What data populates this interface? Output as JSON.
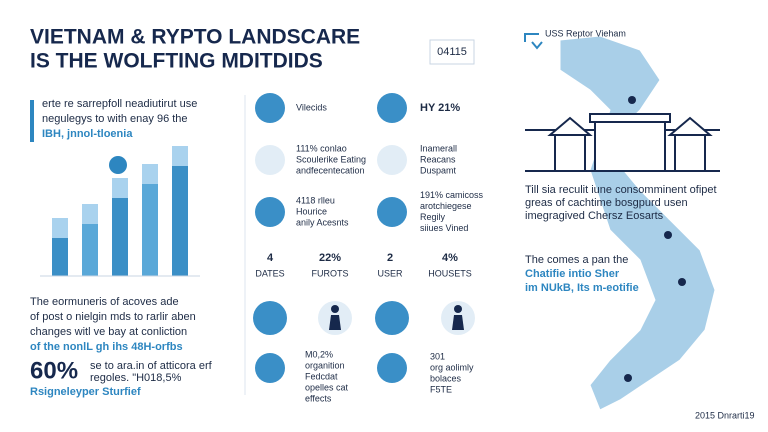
{
  "header": {
    "title_line1": "VIETNAM & RYPTO LANDSCARE",
    "title_line2": "IS THE WOLFTING MDITDIDS",
    "badge": "04115"
  },
  "left": {
    "intro": [
      "erte re sarrepfoll neadiutirut use",
      "negulegys to with enay 96 the",
      "IBH, jnnol-tloenia"
    ],
    "bars": [
      58,
      72,
      98,
      112,
      130
    ],
    "paragraph": [
      "The eormuneris of acoves ade",
      "of post o nielgin mds to rarlir aben",
      "changes witl ve bay at conliction",
      "of the nonlL gh ihs 48H-orfbs"
    ],
    "stat": "60%",
    "stat_note": [
      "se to ara.in of atticora erf",
      "regoles. \"H018,5%"
    ],
    "subtitle": "Rsigneleyper Sturfief"
  },
  "middle": {
    "rows": [
      {
        "left": [
          "Vilecids"
        ],
        "right": [
          "HY 21%"
        ]
      },
      {
        "left": [
          "111% conlao",
          "Scoulerike Eating",
          "andfecentecation"
        ],
        "right": [
          "Inamerall",
          "Reacans",
          "Duspamt"
        ]
      },
      {
        "left": [
          "4118 rlleu",
          "Hourice",
          "anily Acesnts"
        ],
        "right": [
          "191% camicoss",
          "arotchiegese",
          "Regily",
          "siiues Vined"
        ]
      }
    ],
    "stats": [
      {
        "value": "4",
        "label": "DATES"
      },
      {
        "value": "22%",
        "label": "FUROTS"
      },
      {
        "value": "2",
        "label": "USER"
      },
      {
        "value": "4%",
        "label": "HOUSETS"
      }
    ],
    "bottom": {
      "left": [
        "M0,2%",
        "organition",
        "Fedcdat",
        "opelles cat",
        "effects"
      ],
      "right": [
        "301",
        "org aolimly",
        "bolaces",
        "F5TE"
      ]
    }
  },
  "right": {
    "caption": "USS Reptor Vieham",
    "paragraph": [
      "Till sia reculit iune consomminent ofipet",
      "greas of cachtime bosgpurd usen",
      "imegragived Chersz Eosarts"
    ],
    "callout": [
      "The comes a pan the",
      "Chatifie intio Sher",
      "im NUkB, Its m-eotifie"
    ],
    "footer": "2015 Dnrarti19"
  }
}
